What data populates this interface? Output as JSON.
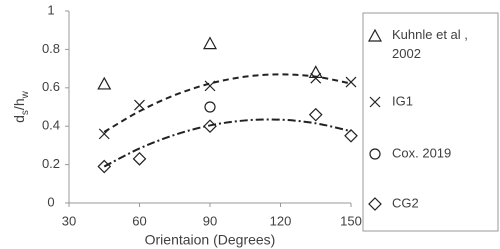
{
  "chart_data": {
    "type": "scatter",
    "xlabel": "Orientaion (Degrees)",
    "ylabel": [
      "d",
      "s",
      "/h",
      "w"
    ],
    "xlim": [
      30,
      150
    ],
    "xticks": [
      30,
      60,
      90,
      120,
      150
    ],
    "ylim": [
      0,
      1
    ],
    "yticks": [
      0,
      0.2,
      0.4,
      0.6,
      0.8,
      1
    ],
    "series": [
      {
        "name": "Kuhnle et al , 2002",
        "marker": "triangle",
        "color": "#222222",
        "x": [
          45,
          90,
          135
        ],
        "values": [
          0.62,
          0.83,
          0.68
        ]
      },
      {
        "name": "IG1",
        "marker": "x",
        "color": "#222222",
        "x": [
          45,
          60,
          90,
          135,
          150
        ],
        "values": [
          0.36,
          0.51,
          0.61,
          0.65,
          0.63
        ]
      },
      {
        "name": "Cox. 2019",
        "marker": "circle",
        "color": "#222222",
        "x": [
          90
        ],
        "values": [
          0.5
        ]
      },
      {
        "name": "CG2",
        "marker": "diamond",
        "color": "#222222",
        "x": [
          45,
          60,
          90,
          135,
          150
        ],
        "values": [
          0.19,
          0.23,
          0.4,
          0.46,
          0.35
        ]
      }
    ],
    "trend_lines": [
      {
        "dash": "6 4",
        "x": [
          45,
          60,
          75,
          90,
          105,
          120,
          135,
          150
        ],
        "values": [
          0.37,
          0.478,
          0.562,
          0.622,
          0.658,
          0.67,
          0.658,
          0.622
        ]
      },
      {
        "dash": "8 3 2 3",
        "x": [
          45,
          60,
          75,
          90,
          105,
          120,
          135,
          150
        ],
        "values": [
          0.19,
          0.284,
          0.355,
          0.404,
          0.43,
          0.434,
          0.415,
          0.374
        ]
      }
    ]
  }
}
